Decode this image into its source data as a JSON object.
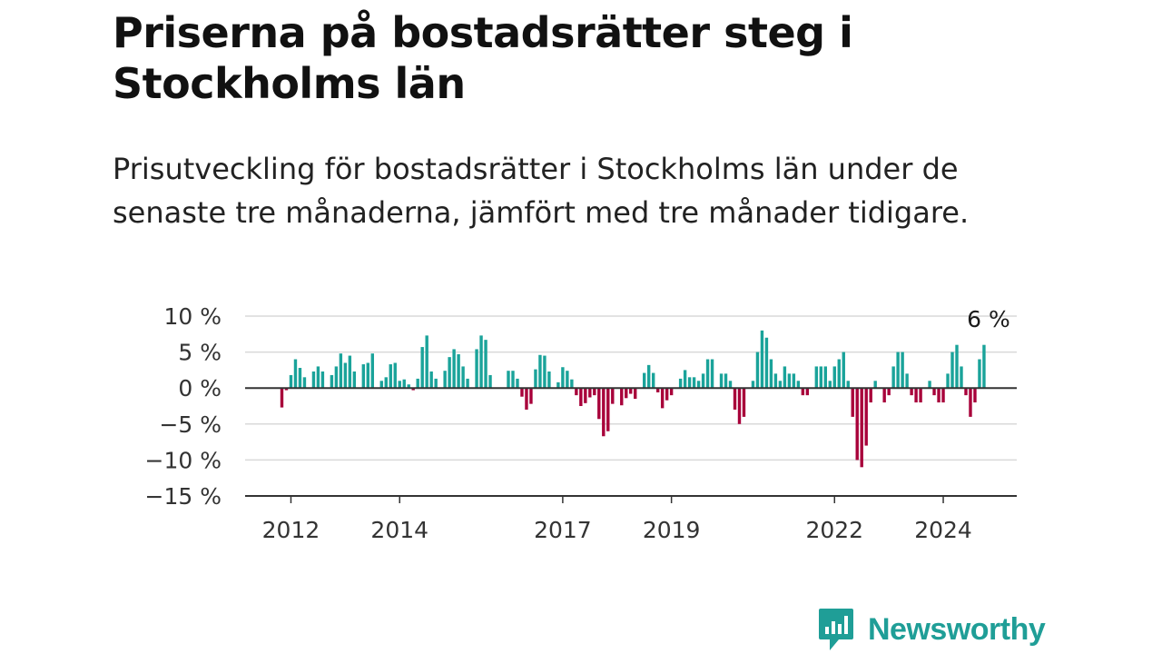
{
  "title": "Priserna på bostadsrätter steg i Stockholms län",
  "subtitle": "Prisutveckling för bostadsrätter i Stockholms län under de senaste tre månaderna, jämfört med tre månader tidigare.",
  "brand": {
    "name": "Newsworthy",
    "icon": "newsworthy-logo-icon",
    "color": "#1f9e97"
  },
  "colors": {
    "positive": "#1aa39a",
    "negative": "#a8003a",
    "grid": "#d9d9d9",
    "axis": "#333333"
  },
  "chart_data": {
    "type": "bar",
    "title": "",
    "xlabel": "",
    "ylabel": "",
    "ylim": [
      -15,
      10
    ],
    "y_ticks": [
      10,
      5,
      0,
      -5,
      -10,
      -15
    ],
    "y_tick_labels": [
      "10 %",
      "5 %",
      "0 %",
      "−5 %",
      "−10 %",
      "−15 %"
    ],
    "x_tick_labels": [
      {
        "label": "2012",
        "index": 2
      },
      {
        "label": "2014",
        "index": 26
      },
      {
        "label": "2017",
        "index": 62
      },
      {
        "label": "2019",
        "index": 86
      },
      {
        "label": "2022",
        "index": 122
      },
      {
        "label": "2024",
        "index": 146
      }
    ],
    "annotation": {
      "text": "6 %",
      "index": 156
    },
    "grid": true,
    "legend": "none",
    "series": [
      {
        "start": "2011-11",
        "frequency": "monthly",
        "values": [
          -2.7,
          -0.3,
          1.8,
          4,
          2.8,
          1.5,
          0,
          2.3,
          3,
          2.3,
          0,
          1.8,
          3,
          4.8,
          3.5,
          4.5,
          2.3,
          0,
          3.3,
          3.5,
          4.8,
          0,
          1,
          1.5,
          3.3,
          3.5,
          1,
          1.2,
          0.5,
          -0.3,
          1.3,
          5.7,
          7.3,
          2.3,
          1.3,
          0,
          2.4,
          4.3,
          5.4,
          4.7,
          3,
          1.3,
          0,
          5.4,
          7.3,
          6.7,
          1.8,
          0,
          0,
          0,
          2.4,
          2.4,
          1.3,
          -1.2,
          -3,
          -2.2,
          2.6,
          4.6,
          4.5,
          2.3,
          0,
          0.8,
          2.9,
          2.4,
          1.2,
          -1,
          -2.5,
          -2.1,
          -1.3,
          -1,
          -4.3,
          -6.7,
          -6,
          -2.2,
          0,
          -2.4,
          -1.4,
          -0.8,
          -1.5,
          0,
          2.1,
          3.2,
          2.1,
          -0.6,
          -2.8,
          -1.7,
          -1,
          0,
          1.3,
          2.5,
          1.5,
          1.5,
          1,
          2,
          4,
          4,
          0,
          2,
          2,
          1,
          -3,
          -5,
          -4,
          0,
          1,
          5,
          8,
          7,
          4,
          2,
          1,
          3,
          2,
          2,
          1,
          -1,
          -1,
          0,
          3,
          3,
          3,
          1,
          3,
          4,
          5,
          1,
          -4,
          -10,
          -11,
          -8,
          -2,
          1,
          0,
          -2,
          -1,
          3,
          5,
          5,
          2,
          -1,
          -2,
          -2,
          0,
          1,
          -1,
          -2,
          -2,
          2,
          5,
          6,
          3,
          -1,
          -4,
          -2,
          4,
          6
        ]
      }
    ]
  }
}
